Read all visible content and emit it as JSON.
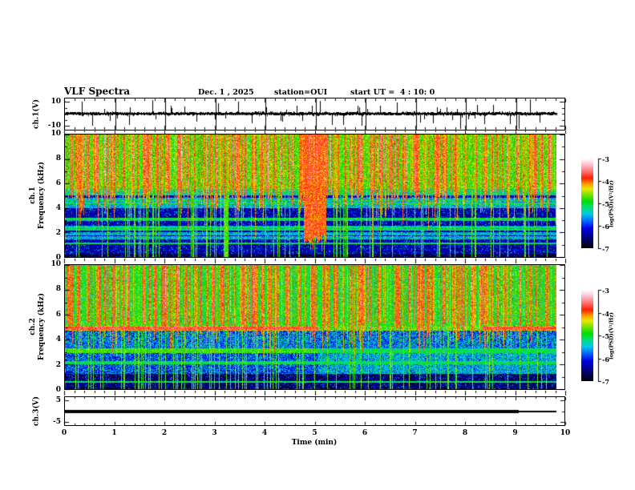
{
  "header": {
    "title": "VLF Spectra",
    "date": "Dec. 1 , 2025",
    "station": "station=OUI",
    "start_ut": "start UT =  4 : 10: 0"
  },
  "xaxis": {
    "label": "Time (min)",
    "ticks": [
      "0",
      "1",
      "2",
      "3",
      "4",
      "5",
      "6",
      "7",
      "8",
      "9",
      "10"
    ]
  },
  "panels": {
    "ch1_wave": {
      "ylabel": "ch.1(V)",
      "yticks": [
        "10",
        "-10"
      ]
    },
    "ch1_spec": {
      "ylabel_line1": "ch.1",
      "ylabel_line2": "Frequency (kHz)",
      "yticks": [
        "10",
        "8",
        "6",
        "4",
        "2",
        "0"
      ]
    },
    "ch2_spec": {
      "ylabel_line1": "ch.2",
      "ylabel_line2": "Frequency (kHz)",
      "yticks": [
        "10",
        "8",
        "6",
        "4",
        "2",
        "0"
      ]
    },
    "ch3_wave": {
      "ylabel": "ch.3(V)",
      "yticks": [
        "5",
        "-5"
      ]
    }
  },
  "colorbar": {
    "label": "log(PSD)(V²/Hz)",
    "ticks": [
      "-3",
      "-4",
      "-5",
      "-6",
      "-7"
    ],
    "value_range": [
      -7,
      -3
    ],
    "colormap_stops": [
      [
        0.0,
        "#000000"
      ],
      [
        0.1,
        "#000070"
      ],
      [
        0.22,
        "#0000e0"
      ],
      [
        0.3,
        "#0060ff"
      ],
      [
        0.38,
        "#00c8e8"
      ],
      [
        0.46,
        "#00e070"
      ],
      [
        0.52,
        "#00dc00"
      ],
      [
        0.6,
        "#7ce400"
      ],
      [
        0.66,
        "#e8e800"
      ],
      [
        0.72,
        "#ff9800"
      ],
      [
        0.78,
        "#ff1e00"
      ],
      [
        0.86,
        "#ff7878"
      ],
      [
        0.94,
        "#ffc8d4"
      ],
      [
        1.0,
        "#ffffff"
      ]
    ]
  },
  "chart_data": [
    {
      "type": "line",
      "panel": "ch.1 waveform",
      "ylabel": "ch.1(V)",
      "ytick_values": [
        10,
        -10
      ],
      "x_range_min": [
        0,
        10
      ],
      "data_end_min": 9.8,
      "baseline_v": 0,
      "typical_amplitude_v": 1.5,
      "spike_amplitude_v_max": 10,
      "grid_lines_every_min": 1,
      "spike_times_min": [
        0.33,
        0.55,
        0.9,
        1.3,
        1.75,
        2.12,
        2.38,
        2.62,
        3.05,
        3.45,
        3.72,
        4.02,
        4.3,
        4.62,
        5.08,
        5.32,
        5.55,
        5.92,
        6.28,
        6.62,
        7.08,
        7.35,
        7.62,
        7.88,
        8.22,
        8.55,
        8.88,
        9.05,
        9.28,
        9.47
      ]
    },
    {
      "type": "heatmap",
      "panel": "ch.1 spectrogram",
      "ylabel": "ch.1 Frequency (kHz)",
      "freq_range_khz": [
        0,
        10
      ],
      "time_range_min": [
        0,
        10
      ],
      "data_end_min": 9.8,
      "value_scale": "log(PSD)(V²/Hz)",
      "value_range": [
        -7,
        -3
      ],
      "features": {
        "broadband_sferics_above_khz": 5.6,
        "cyan_band_khz": [
          5.05,
          5.6
        ],
        "quiet_background_log_psd": -6.35,
        "active_background_log_psd": -4.75,
        "horizontal_bands_khz": [
          1.6,
          1.95,
          2.45,
          3.1,
          4.15,
          4.45,
          4.75
        ],
        "burst_time_min": [
          4.75,
          5.2
        ],
        "stripe_density": 0.55,
        "red_streak_prob": 0.18,
        "vline_density": 0.13,
        "hline_count": 8,
        "hline_min_khz": 0.8,
        "hline_max_khz": 5.5,
        "stripe_top_khz": 5.5,
        "stripe_depth_var_khz": 4.2
      }
    },
    {
      "type": "heatmap",
      "panel": "ch.2 spectrogram",
      "ylabel": "ch.2 Frequency (kHz)",
      "freq_range_khz": [
        0,
        10
      ],
      "time_range_min": [
        0,
        10
      ],
      "data_end_min": 9.8,
      "value_scale": "log(PSD)(V²/Hz)",
      "value_range": [
        -7,
        -3
      ],
      "features": {
        "broadband_above_khz": 5.35,
        "red_band_khz": [
          4.75,
          5.15
        ],
        "red_band_strong_before_min": 5.05,
        "red_band_strong_after_min": 8.3,
        "yellow_green_band_khz": [
          2.95,
          3.35
        ],
        "dark_below_khz": 1.25,
        "background_log_psd": -5.0,
        "stripe_density": 0.5,
        "red_streak_prob": 0.06,
        "vline_density": 0.13,
        "hline_count": 5,
        "hline_min_khz": 0.6,
        "hline_max_khz": 4.8,
        "stripe_top_khz": 5.4,
        "stripe_depth_var_khz": 3.0
      }
    },
    {
      "type": "line",
      "panel": "ch.3 waveform",
      "ylabel": "ch.3(V)",
      "ytick_values": [
        5,
        -5
      ],
      "x_range_min": [
        0,
        10
      ],
      "value_v": 0,
      "thick_until_min": 9.05,
      "data_end_min": 9.8
    }
  ]
}
